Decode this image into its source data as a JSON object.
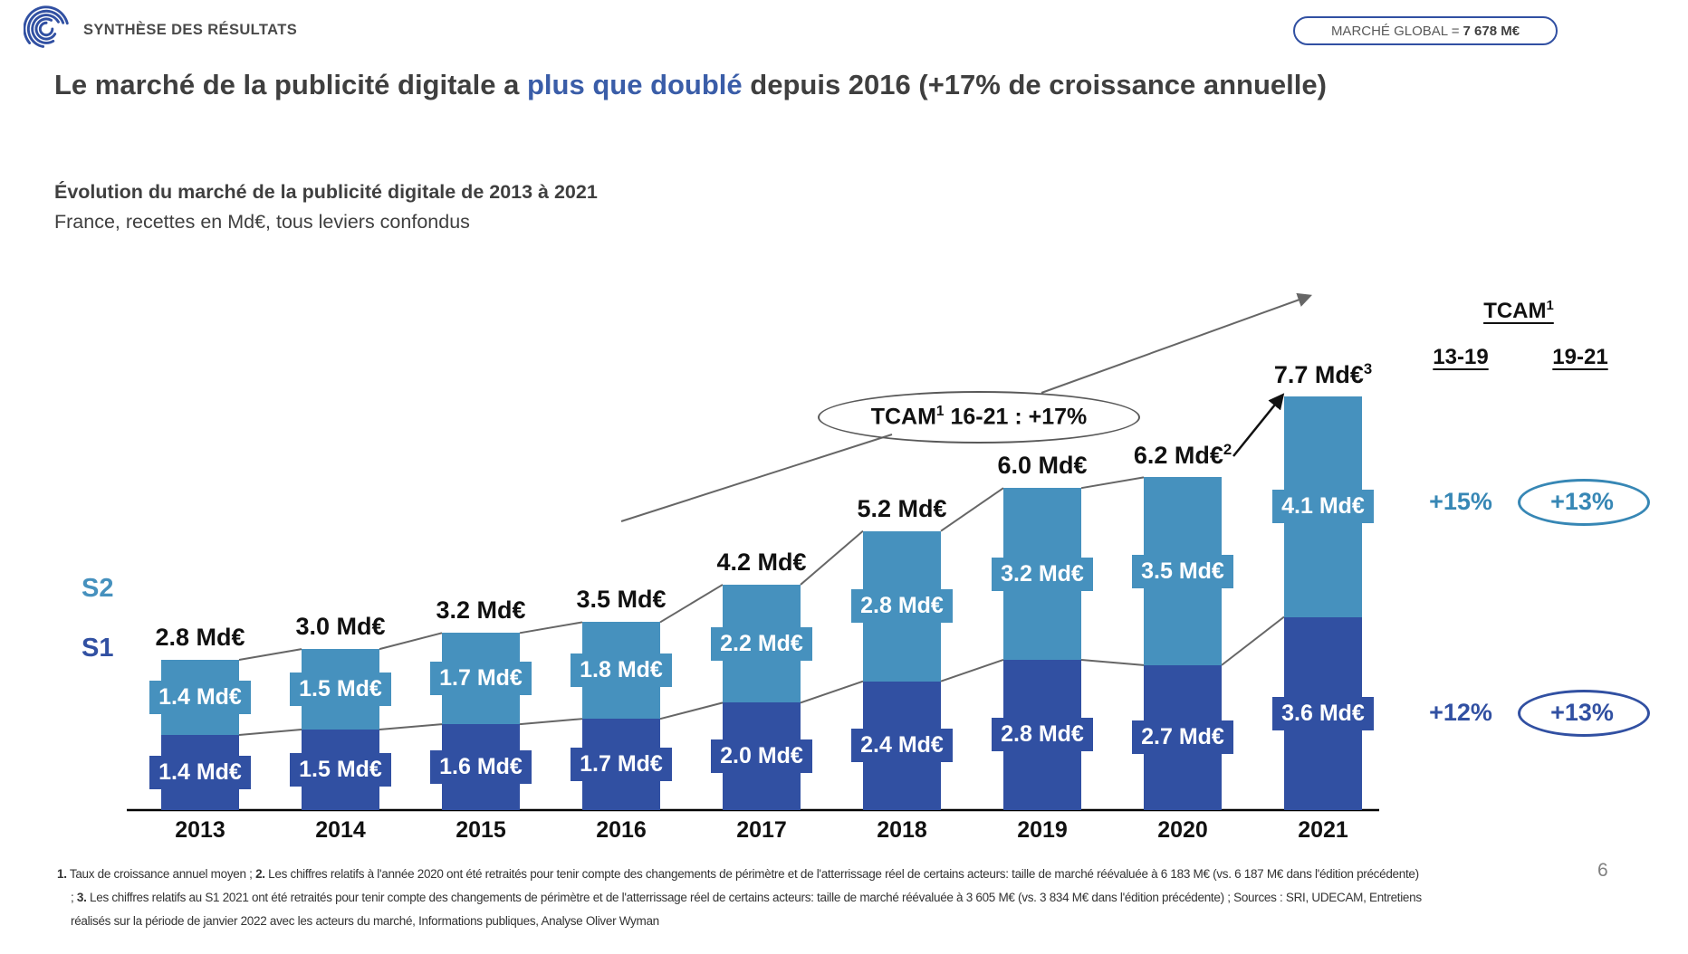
{
  "colors": {
    "navy": "#3150A2",
    "teal": "#4691BE",
    "title_blue": "#3A5DA8",
    "text_dark": "#3F3F3F",
    "line_gray": "#666666"
  },
  "header": {
    "brand": "SYNTHÈSE DES RÉSULTATS",
    "market_global_label": "MARCHÉ GLOBAL =",
    "market_global_value": "7 678 M€"
  },
  "title": {
    "prefix": "Le marché de la publicité digitale a ",
    "highlight": "plus que doublé",
    "suffix": " depuis 2016 (+17% de croissance annuelle)"
  },
  "subtitle": {
    "line1": "Évolution du marché de la publicité digitale de 2013 à 2021",
    "line2": "France, recettes en Md€, tous leviers confondus"
  },
  "chart_data": {
    "type": "bar",
    "stacked": true,
    "title": "Évolution du marché de la publicité digitale de 2013 à 2021",
    "unit": "Md€",
    "ylim": [
      0,
      8
    ],
    "categories": [
      "2013",
      "2014",
      "2015",
      "2016",
      "2017",
      "2018",
      "2019",
      "2020",
      "2021"
    ],
    "series": [
      {
        "name": "S1",
        "color": "#3150A2",
        "values": [
          1.4,
          1.5,
          1.6,
          1.7,
          2.0,
          2.4,
          2.8,
          2.7,
          3.6
        ],
        "labels": [
          "1.4 Md€",
          "1.5 Md€",
          "1.6 Md€",
          "1.7 Md€",
          "2.0 Md€",
          "2.4 Md€",
          "2.8 Md€",
          "2.7 Md€",
          "3.6 Md€"
        ]
      },
      {
        "name": "S2",
        "color": "#4691BE",
        "values": [
          1.4,
          1.5,
          1.7,
          1.8,
          2.2,
          2.8,
          3.2,
          3.5,
          4.1
        ],
        "labels": [
          "1.4 Md€",
          "1.5 Md€",
          "1.7 Md€",
          "1.8 Md€",
          "2.2 Md€",
          "2.8 Md€",
          "3.2 Md€",
          "3.5 Md€",
          "4.1 Md€"
        ]
      }
    ],
    "totals": [
      {
        "label": "2.8 Md€",
        "sup": ""
      },
      {
        "label": "3.0 Md€",
        "sup": ""
      },
      {
        "label": "3.2 Md€",
        "sup": ""
      },
      {
        "label": "3.5 Md€",
        "sup": ""
      },
      {
        "label": "4.2 Md€",
        "sup": ""
      },
      {
        "label": "5.2 Md€",
        "sup": ""
      },
      {
        "label": "6.0 Md€",
        "sup": ""
      },
      {
        "label": "6.2 Md€",
        "sup": "2"
      },
      {
        "label": "7.7 Md€",
        "sup": "3"
      }
    ],
    "annotation": {
      "label": "TCAM",
      "sup": "1",
      "rest": " 16-21 : +17%"
    }
  },
  "tcam_panel": {
    "title": "TCAM",
    "title_sup": "1",
    "columns": [
      "13-19",
      "19-21"
    ],
    "rows": [
      {
        "cells": [
          "+15%",
          "+13%"
        ],
        "circled_index": 1,
        "color": "#3787B5"
      },
      {
        "cells": [
          "+12%",
          "+13%"
        ],
        "circled_index": 1,
        "color": "#3150A2"
      }
    ]
  },
  "footnotes": [
    {
      "parts": [
        {
          "text": "1.",
          "bold": true
        },
        {
          "text": " Taux de croissance annuel moyen ; ",
          "bold": false
        },
        {
          "text": "2.",
          "bold": true
        },
        {
          "text": " Les chiffres relatifs à l'année 2020 ont été retraités pour tenir compte des changements de périmètre et de l'atterrissage réel de certains acteurs: taille de marché réévaluée à 6 183 M€ (vs. 6 187 M€ dans l'édition précédente)",
          "bold": false
        }
      ]
    },
    {
      "parts": [
        {
          "text": "; ",
          "bold": false
        },
        {
          "text": "3.",
          "bold": true
        },
        {
          "text": " Les chiffres relatifs au S1 2021 ont été retraités pour tenir compte des changements de périmètre et de l'atterrissage réel de certains acteurs: taille de marché réévaluée à 3 605 M€ (vs. 3 834 M€ dans l'édition précédente) ; Sources : SRI, UDECAM, Entretiens",
          "bold": false
        }
      ]
    },
    {
      "parts": [
        {
          "text": "réalisés sur la période de janvier 2022 avec les acteurs du marché, Informations publiques, Analyse Oliver Wyman",
          "bold": false
        }
      ]
    }
  ],
  "page_number": "6"
}
